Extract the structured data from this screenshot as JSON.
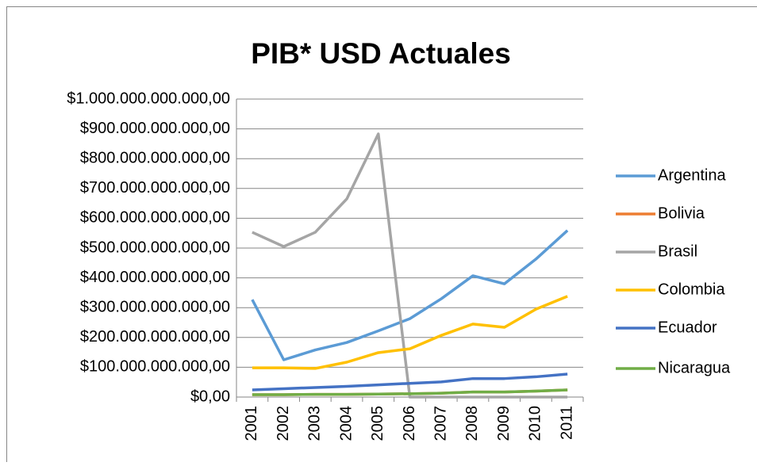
{
  "chart_data": {
    "type": "line",
    "title": "PIB* USD Actuales",
    "categories": [
      "2001",
      "2002",
      "2003",
      "2004",
      "2005",
      "2006",
      "2007",
      "2008",
      "2009",
      "2010",
      "2011"
    ],
    "series": [
      {
        "name": "Argentina",
        "color": "#5b9bd5",
        "values": [
          327000000000,
          125000000000,
          158000000000,
          183000000000,
          222000000000,
          263000000000,
          330000000000,
          407000000000,
          380000000000,
          463000000000,
          559000000000
        ]
      },
      {
        "name": "Bolivia",
        "color": "#ed7d31",
        "values": [
          8000000000,
          8000000000,
          9000000000,
          9000000000,
          10000000000,
          11000000000,
          13000000000,
          17000000000,
          17000000000,
          20000000000,
          24000000000
        ]
      },
      {
        "name": "Brasil",
        "color": "#a5a5a5",
        "values": [
          553000000000,
          505000000000,
          553000000000,
          665000000000,
          883000000000,
          0,
          0,
          0,
          0,
          0,
          0
        ]
      },
      {
        "name": "Colombia",
        "color": "#ffc000",
        "values": [
          98000000000,
          98000000000,
          96000000000,
          117000000000,
          149000000000,
          162000000000,
          207000000000,
          245000000000,
          234000000000,
          295000000000,
          338000000000
        ]
      },
      {
        "name": "Ecuador",
        "color": "#4472c4",
        "values": [
          24000000000,
          28000000000,
          32000000000,
          36000000000,
          41000000000,
          46000000000,
          51000000000,
          62000000000,
          62000000000,
          68000000000,
          77000000000
        ]
      },
      {
        "name": "Nicaragua",
        "color": "#70ad47",
        "values": [
          8000000000,
          8000000000,
          9000000000,
          9000000000,
          10000000000,
          11000000000,
          13000000000,
          17000000000,
          17000000000,
          20000000000,
          24000000000
        ]
      }
    ],
    "ylim": [
      0,
      1000000000000
    ],
    "yticks": [
      {
        "value": 0,
        "label": "$0,00"
      },
      {
        "value": 100000000000,
        "label": "$100.000.000.000,00"
      },
      {
        "value": 200000000000,
        "label": "$200.000.000.000,00"
      },
      {
        "value": 300000000000,
        "label": "$300.000.000.000,00"
      },
      {
        "value": 400000000000,
        "label": "$400.000.000.000,00"
      },
      {
        "value": 500000000000,
        "label": "$500.000.000.000,00"
      },
      {
        "value": 600000000000,
        "label": "$600.000.000.000,00"
      },
      {
        "value": 700000000000,
        "label": "$700.000.000.000,00"
      },
      {
        "value": 800000000000,
        "label": "$800.000.000.000,00"
      },
      {
        "value": 900000000000,
        "label": "$900.000.000.000,00"
      },
      {
        "value": 1000000000000,
        "label": "$1.000.000.000.000,00"
      }
    ],
    "grid": true,
    "legend": "right"
  }
}
